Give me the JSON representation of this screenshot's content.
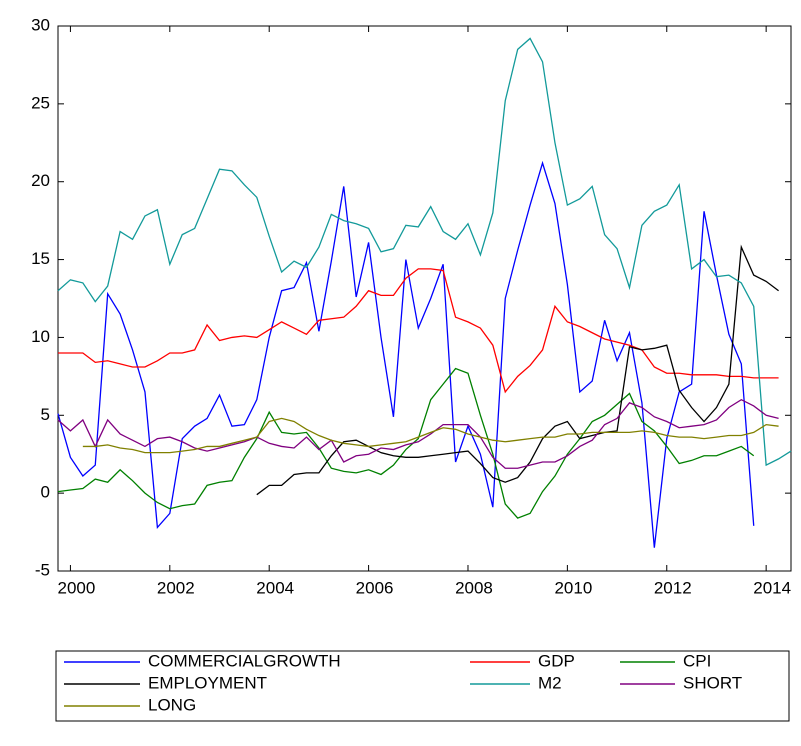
{
  "chart_data": {
    "type": "line",
    "x": [
      1999.75,
      2000,
      2000.25,
      2000.5,
      2000.75,
      2001,
      2001.25,
      2001.5,
      2001.75,
      2002,
      2002.25,
      2002.5,
      2002.75,
      2003,
      2003.25,
      2003.5,
      2003.75,
      2004,
      2004.25,
      2004.5,
      2004.75,
      2005,
      2005.25,
      2005.5,
      2005.75,
      2006,
      2006.25,
      2006.5,
      2006.75,
      2007,
      2007.25,
      2007.5,
      2007.75,
      2008,
      2008.25,
      2008.5,
      2008.75,
      2009,
      2009.25,
      2009.5,
      2009.75,
      2010,
      2010.25,
      2010.5,
      2010.75,
      2011,
      2011.25,
      2011.5,
      2011.75,
      2012,
      2012.25,
      2012.5,
      2012.75,
      2013,
      2013.25,
      2013.5,
      2013.75,
      2014,
      2014.25,
      2014.5
    ],
    "xlim": [
      1999.75,
      2014.5
    ],
    "xticks": [
      2000,
      2002,
      2004,
      2006,
      2008,
      2010,
      2012,
      2014
    ],
    "ylim": [
      -5,
      30
    ],
    "yticks": [
      -5,
      0,
      5,
      10,
      15,
      20,
      25,
      30
    ],
    "series": [
      {
        "name": "COMMERCIALGROWTH",
        "color": "#0000ff",
        "values": [
          5.1,
          2.3,
          1.1,
          1.8,
          12.8,
          11.5,
          9.2,
          6.5,
          -2.2,
          -1.3,
          3.5,
          4.3,
          4.8,
          6.3,
          4.3,
          4.4,
          6,
          10,
          13,
          13.2,
          14.8,
          10.4,
          14.9,
          19.7,
          12.6,
          16.1,
          10,
          4.9,
          15,
          10.6,
          12.5,
          14.7,
          2,
          4.3,
          2.5,
          -0.9,
          12.5,
          15.6,
          18.5,
          21.2,
          18.6,
          13.4,
          6.5,
          7.2,
          11.1,
          8.5,
          10.3,
          5.8,
          -3.5,
          3.5,
          6.5,
          7,
          18.1,
          14,
          10.2,
          8.3,
          -2.1,
          null,
          null,
          null
        ]
      },
      {
        "name": "GDP",
        "color": "#ff0000",
        "values": [
          9,
          9,
          9,
          8.4,
          8.5,
          8.3,
          8.1,
          8.1,
          8.5,
          9,
          9,
          9.2,
          10.8,
          9.8,
          10,
          10.1,
          10,
          10.5,
          11,
          10.6,
          10.2,
          11.1,
          11.2,
          11.3,
          12,
          13,
          12.7,
          12.7,
          13.8,
          14.4,
          14.4,
          14.3,
          11.3,
          11,
          10.6,
          9.5,
          6.5,
          7.5,
          8.2,
          9.2,
          12,
          11,
          10.7,
          10.3,
          9.9,
          9.7,
          9.5,
          9.2,
          8.1,
          7.7,
          7.7,
          7.6,
          7.6,
          7.6,
          7.5,
          7.5,
          7.4,
          7.4,
          7.4,
          null
        ]
      },
      {
        "name": "CPI",
        "color": "#008000",
        "values": [
          0.1,
          0.2,
          0.3,
          0.9,
          0.7,
          1.5,
          0.8,
          0,
          -0.6,
          -1,
          -0.8,
          -0.7,
          0.5,
          0.7,
          0.8,
          2.3,
          3.5,
          5.2,
          3.9,
          3.8,
          3.9,
          2.9,
          1.6,
          1.4,
          1.3,
          1.5,
          1.2,
          1.8,
          2.8,
          3.5,
          6,
          7,
          8,
          7.7,
          5,
          2.5,
          -0.7,
          -1.6,
          -1.3,
          0.1,
          1.1,
          2.5,
          3.5,
          4.6,
          5,
          5.7,
          6.4,
          4.6,
          4,
          3,
          1.9,
          2.1,
          2.4,
          2.4,
          2.7,
          3,
          2.4,
          null,
          null,
          null
        ]
      },
      {
        "name": "EMPLOYMENT",
        "color": "#000000",
        "values": [
          null,
          null,
          null,
          null,
          null,
          null,
          null,
          null,
          null,
          null,
          null,
          null,
          null,
          null,
          null,
          null,
          -0.1,
          0.5,
          0.5,
          1.2,
          1.3,
          1.3,
          2.4,
          3.3,
          3.4,
          3,
          2.6,
          2.4,
          2.3,
          2.3,
          2.4,
          2.5,
          2.6,
          2.7,
          1.9,
          1,
          0.7,
          1,
          2,
          3.5,
          4.3,
          4.6,
          3.5,
          3.7,
          3.9,
          4,
          9.4,
          9.2,
          9.3,
          9.5,
          6.6,
          5.5,
          4.6,
          5.5,
          7,
          15.8,
          14,
          13.6,
          13,
          null
        ]
      },
      {
        "name": "M2",
        "color": "#139a9a",
        "values": [
          13,
          13.7,
          13.5,
          12.3,
          13.3,
          16.8,
          16.3,
          17.8,
          18.2,
          14.7,
          16.6,
          17,
          18.9,
          20.8,
          20.7,
          19.8,
          19,
          16.5,
          14.2,
          14.9,
          14.5,
          15.8,
          17.9,
          17.5,
          17.3,
          17,
          15.5,
          15.7,
          17.2,
          17.1,
          18.4,
          16.8,
          16.3,
          17.3,
          15.3,
          18,
          25.2,
          28.5,
          29.2,
          27.7,
          22.5,
          18.5,
          18.9,
          19.7,
          16.6,
          15.7,
          13.2,
          17.2,
          18.1,
          18.5,
          19.8,
          14.4,
          15,
          13.9,
          14,
          13.5,
          12,
          1.8,
          2.2,
          2.7
        ]
      },
      {
        "name": "SHORT",
        "color": "#800080",
        "values": [
          4.7,
          4,
          4.7,
          3,
          4.7,
          3.8,
          3.4,
          3,
          3.5,
          3.6,
          3.3,
          2.9,
          2.7,
          2.9,
          3.1,
          3.3,
          3.6,
          3.2,
          3,
          2.9,
          3.6,
          2.8,
          3.4,
          2,
          2.4,
          2.5,
          2.9,
          2.8,
          3.1,
          3.3,
          3.8,
          4.4,
          4.4,
          4.4,
          3.6,
          2.3,
          1.6,
          1.6,
          1.8,
          2,
          2,
          2.4,
          3,
          3.4,
          4.4,
          4.8,
          5.8,
          5.5,
          4.9,
          4.6,
          4.2,
          4.3,
          4.4,
          4.7,
          5.5,
          6,
          5.6,
          5,
          4.8,
          null
        ]
      },
      {
        "name": "LONG",
        "color": "#808000",
        "values": [
          null,
          null,
          3,
          3,
          3.1,
          2.9,
          2.8,
          2.6,
          2.6,
          2.6,
          2.7,
          2.8,
          3,
          3,
          3.2,
          3.4,
          3.6,
          4.6,
          4.8,
          4.6,
          4.1,
          3.7,
          3.4,
          3.2,
          3.1,
          3,
          3.1,
          3.2,
          3.3,
          3.6,
          3.9,
          4.2,
          4.1,
          3.8,
          3.6,
          3.4,
          3.3,
          3.4,
          3.5,
          3.6,
          3.6,
          3.8,
          3.8,
          3.9,
          3.9,
          3.9,
          3.9,
          4,
          3.9,
          3.7,
          3.6,
          3.6,
          3.5,
          3.6,
          3.7,
          3.7,
          3.9,
          4.4,
          4.3,
          null
        ]
      }
    ]
  }
}
